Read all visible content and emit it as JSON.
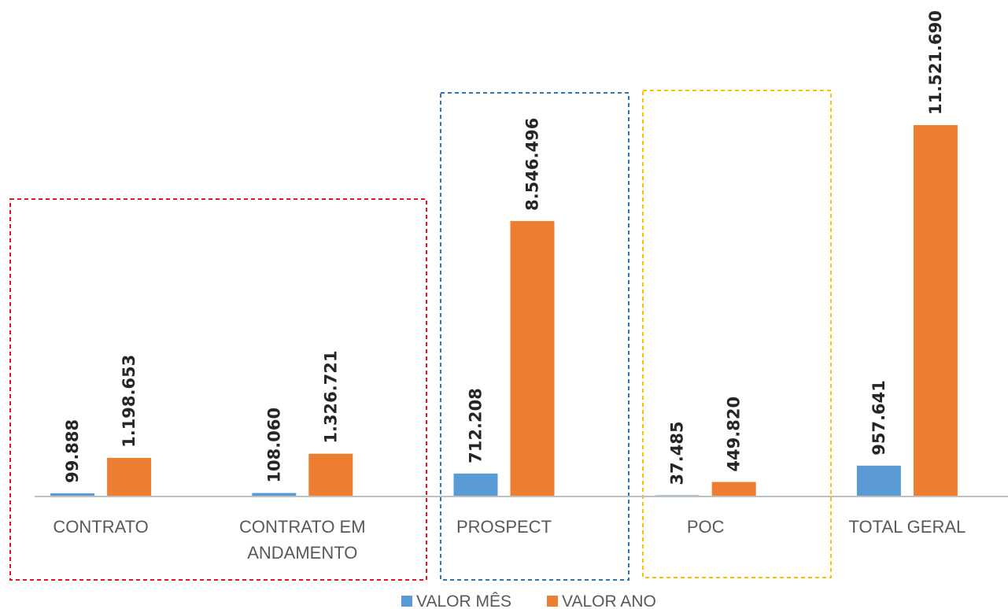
{
  "chart_data": {
    "type": "bar",
    "categories": [
      "CONTRATO",
      "CONTRATO EM ANDAMENTO",
      "PROSPECT",
      "POC",
      "TOTAL GERAL"
    ],
    "category_label_lines": [
      [
        "CONTRATO"
      ],
      [
        "CONTRATO EM",
        "ANDAMENTO"
      ],
      [
        "PROSPECT"
      ],
      [
        "POC"
      ],
      [
        "TOTAL GERAL"
      ]
    ],
    "series": [
      {
        "name": "VALOR MÊS",
        "color": "#5b9bd5",
        "values": [
          99888,
          108060,
          712208,
          37485,
          957641
        ],
        "labels": [
          "99.888",
          "108.060",
          "712.208",
          "37.485",
          "957.641"
        ]
      },
      {
        "name": "VALOR ANO",
        "color": "#ed7d31",
        "values": [
          1198653,
          1326721,
          8546496,
          449820,
          11521690
        ],
        "labels": [
          "1.198.653",
          "1.326.721",
          "8.546.496",
          "449.820",
          "11.521.690"
        ]
      }
    ],
    "ylim": [
      0,
      11521690
    ],
    "grid": false,
    "legend": "bottom",
    "annotations": [
      {
        "type": "dashed-box",
        "color": "#e8141b",
        "categories": [
          "CONTRATO",
          "CONTRATO EM ANDAMENTO"
        ]
      },
      {
        "type": "dashed-box",
        "color": "#2e75b6",
        "categories": [
          "PROSPECT"
        ]
      },
      {
        "type": "dashed-box",
        "color": "#ffc000",
        "categories": [
          "POC"
        ]
      }
    ]
  }
}
